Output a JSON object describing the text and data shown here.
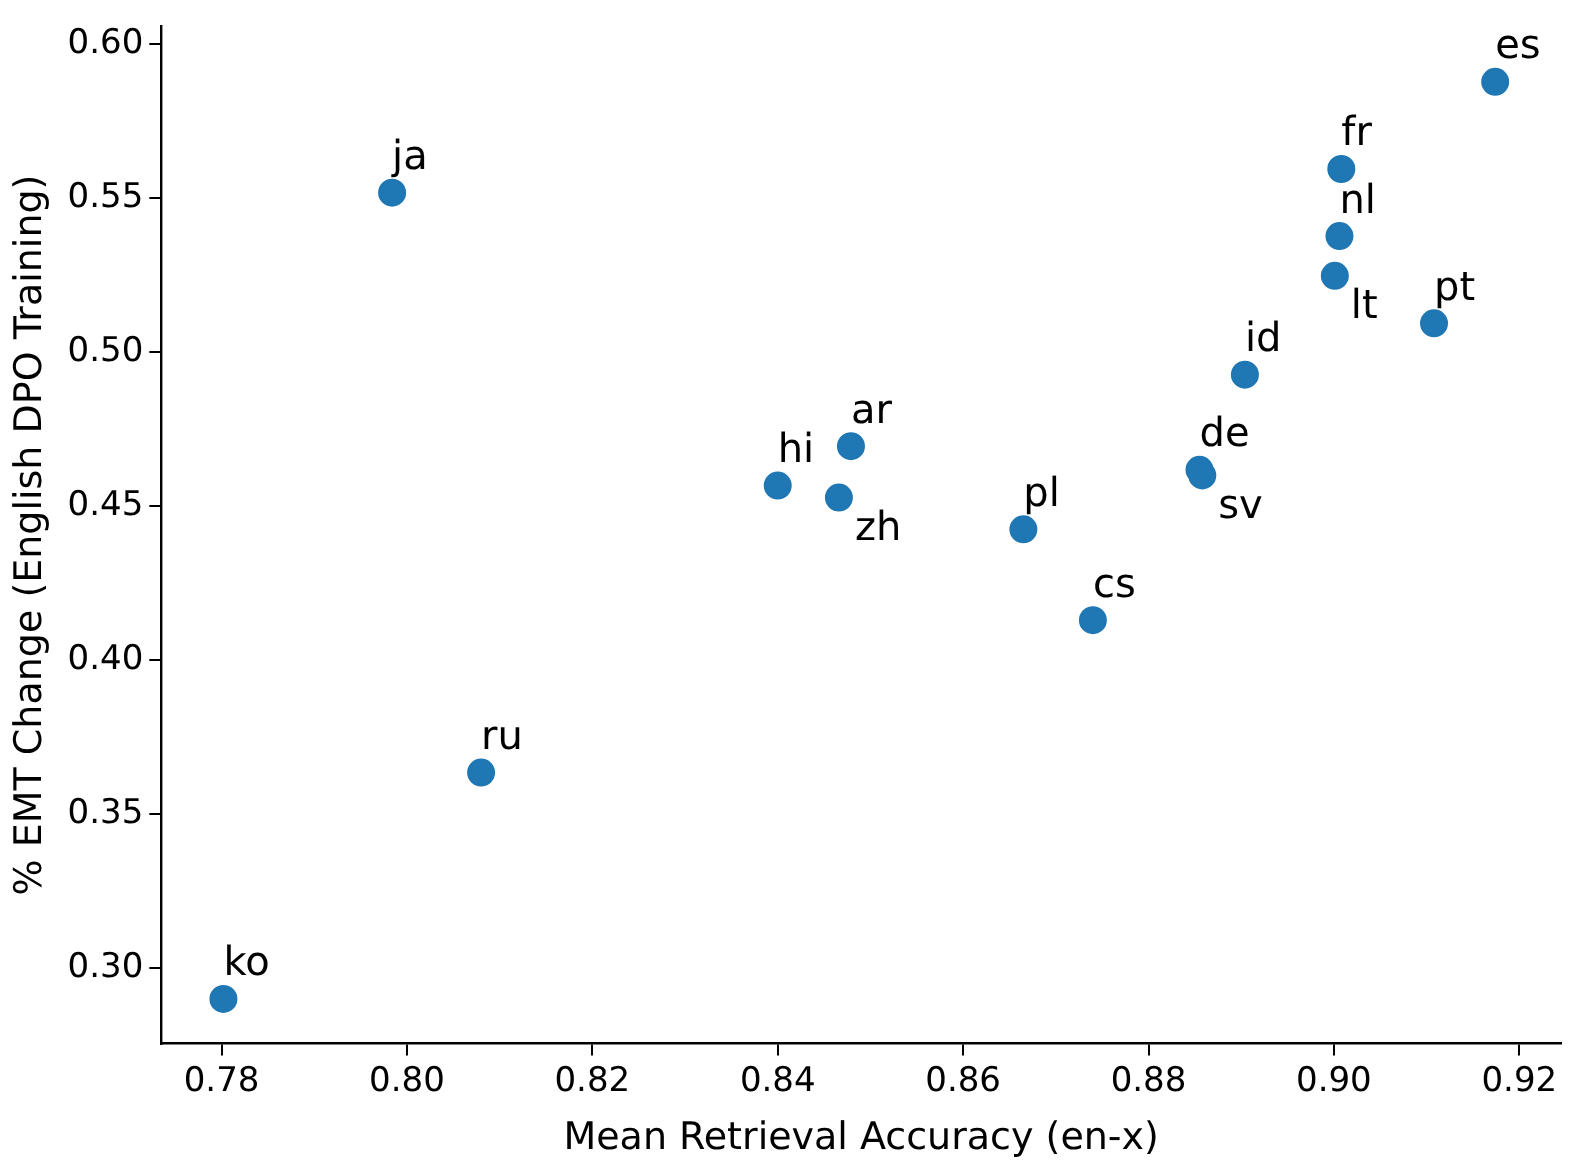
{
  "chart_data": {
    "type": "scatter",
    "xlabel": "Mean Retrieval Accuracy (en-x)",
    "ylabel": "% EMT Change (English DPO Training)",
    "x": [
      0.7802,
      0.808,
      0.7984,
      0.84,
      0.8479,
      0.8466,
      0.8665,
      0.874,
      0.8855,
      0.8858,
      0.8904,
      0.9001,
      0.9006,
      0.9008,
      0.9108,
      0.9174
    ],
    "series": [
      {
        "color": "#1f77b4",
        "values": [
          0.29,
          0.3635,
          0.5518,
          0.4567,
          0.4695,
          0.4528,
          0.4425,
          0.413,
          0.4618,
          0.46,
          0.4927,
          0.5248,
          0.5377,
          0.5595,
          0.5094,
          0.5878
        ]
      }
    ],
    "annotations": [
      {
        "text": "ko",
        "x": 0.7802,
        "y": 0.29
      },
      {
        "text": "ru",
        "x": 0.808,
        "y": 0.3635
      },
      {
        "text": "ja",
        "x": 0.7984,
        "y": 0.5518
      },
      {
        "text": "hi",
        "x": 0.84,
        "y": 0.4567
      },
      {
        "text": "ar",
        "x": 0.8479,
        "y": 0.4695
      },
      {
        "text": "zh",
        "x": 0.8466,
        "y": 0.4528
      },
      {
        "text": "pl",
        "x": 0.8665,
        "y": 0.4425
      },
      {
        "text": "cs",
        "x": 0.874,
        "y": 0.413
      },
      {
        "text": "de",
        "x": 0.8855,
        "y": 0.4618
      },
      {
        "text": "sv",
        "x": 0.8858,
        "y": 0.46
      },
      {
        "text": "id",
        "x": 0.8904,
        "y": 0.4927
      },
      {
        "text": "lt",
        "x": 0.9001,
        "y": 0.5248
      },
      {
        "text": "nl",
        "x": 0.9006,
        "y": 0.5377
      },
      {
        "text": "fr",
        "x": 0.9008,
        "y": 0.5595
      },
      {
        "text": "pt",
        "x": 0.9108,
        "y": 0.5094
      },
      {
        "text": "es",
        "x": 0.9174,
        "y": 0.5878
      }
    ],
    "xlim": [
      0.7735,
      0.9245
    ],
    "xticks": [
      0.78,
      {
        "value": 0.8,
        "label": "0.80"
      },
      0.82,
      0.84,
      0.86,
      0.88,
      {
        "value": 0.9,
        "label": "0.90"
      },
      0.92
    ],
    "ylim": [
      0.2755,
      0.6058
    ],
    "yticks": [
      {
        "value": 0.3,
        "label": "0.30"
      },
      0.35,
      {
        "value": 0.4,
        "label": "0.40"
      },
      0.45,
      {
        "value": 0.5,
        "label": "0.50"
      },
      0.55,
      {
        "value": 0.6,
        "label": "0.60"
      }
    ],
    "grid": false,
    "legend": false,
    "marker": "circle"
  }
}
